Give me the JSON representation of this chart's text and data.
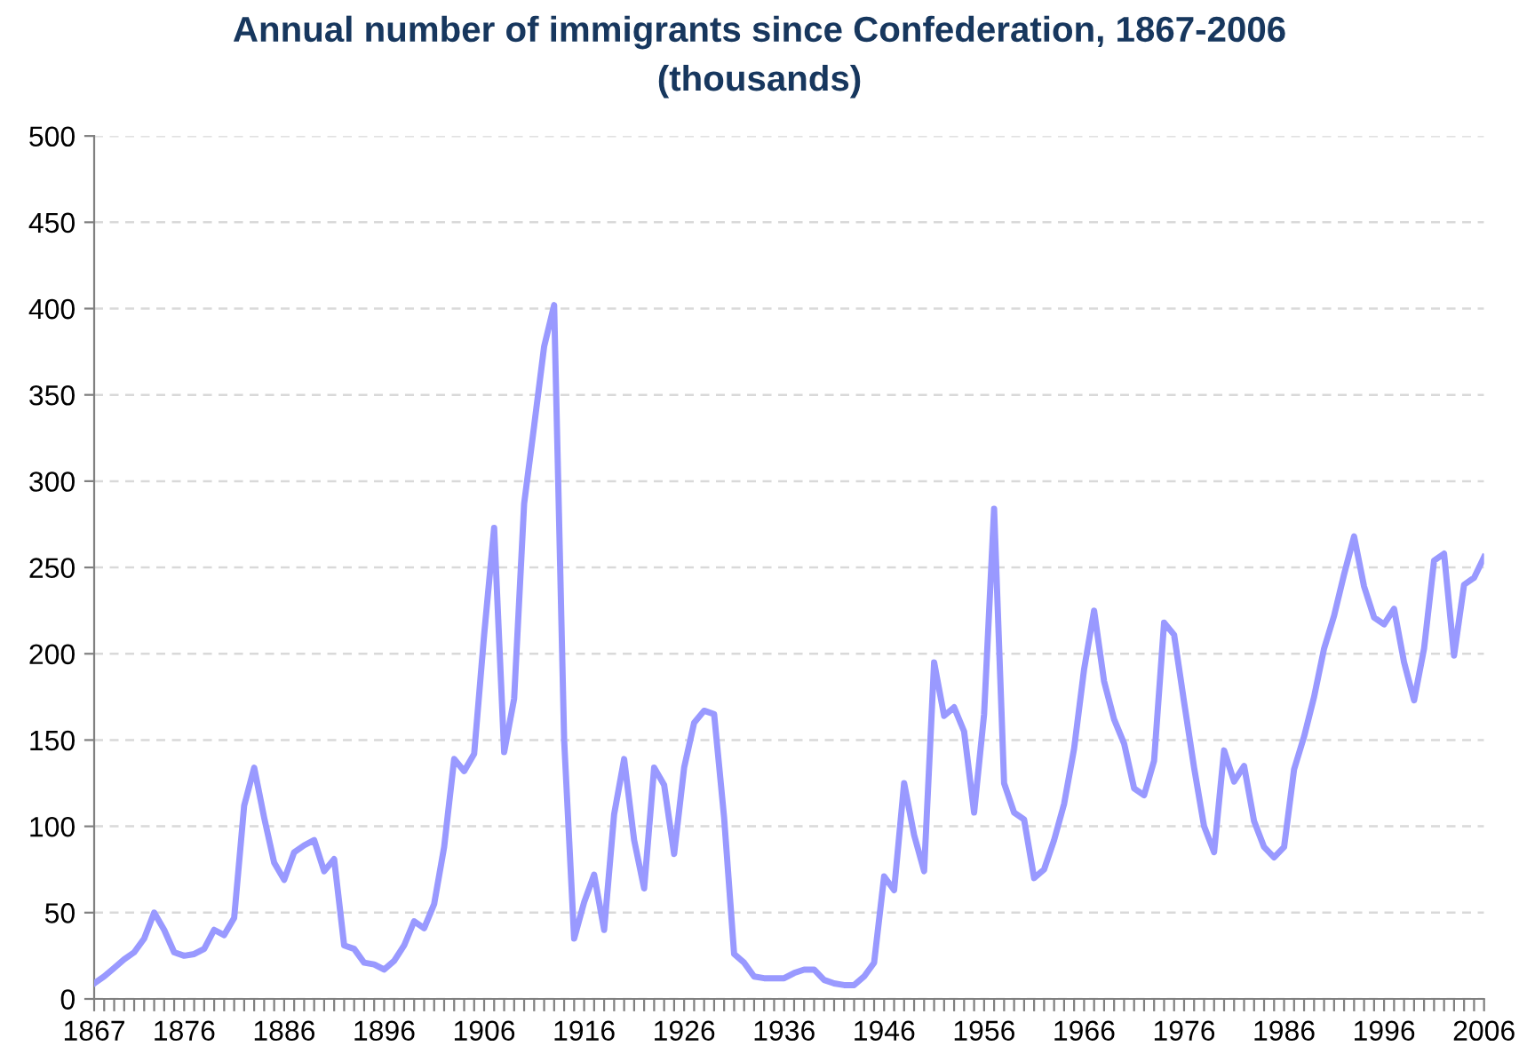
{
  "chart_data": {
    "type": "line",
    "title": "Annual number of immigrants since Confederation, 1867-2006\n(thousands)",
    "x": [
      1867,
      1868,
      1869,
      1870,
      1871,
      1872,
      1873,
      1874,
      1875,
      1876,
      1877,
      1878,
      1879,
      1880,
      1881,
      1882,
      1883,
      1884,
      1885,
      1886,
      1887,
      1888,
      1889,
      1890,
      1891,
      1892,
      1893,
      1894,
      1895,
      1896,
      1897,
      1898,
      1899,
      1900,
      1901,
      1902,
      1903,
      1904,
      1905,
      1906,
      1907,
      1908,
      1909,
      1910,
      1911,
      1912,
      1913,
      1914,
      1915,
      1916,
      1917,
      1918,
      1919,
      1920,
      1921,
      1922,
      1923,
      1924,
      1925,
      1926,
      1927,
      1928,
      1929,
      1930,
      1931,
      1932,
      1933,
      1934,
      1935,
      1936,
      1937,
      1938,
      1939,
      1940,
      1941,
      1942,
      1943,
      1944,
      1945,
      1946,
      1947,
      1948,
      1949,
      1950,
      1951,
      1952,
      1953,
      1954,
      1955,
      1956,
      1957,
      1958,
      1959,
      1960,
      1961,
      1962,
      1963,
      1964,
      1965,
      1966,
      1967,
      1968,
      1969,
      1970,
      1971,
      1972,
      1973,
      1974,
      1975,
      1976,
      1977,
      1978,
      1979,
      1980,
      1981,
      1982,
      1983,
      1984,
      1985,
      1986,
      1987,
      1988,
      1989,
      1990,
      1991,
      1992,
      1993,
      1994,
      1995,
      1996,
      1997,
      1998,
      1999,
      2000,
      2001,
      2002,
      2003,
      2004,
      2005,
      2006
    ],
    "series": [
      {
        "color": "#9999ff",
        "values": [
          9,
          13,
          18,
          23,
          27,
          35,
          50,
          40,
          27,
          25,
          26,
          29,
          40,
          37,
          47,
          112,
          134,
          105,
          79,
          69,
          85,
          89,
          92,
          74,
          81,
          31,
          29,
          21,
          20,
          17,
          22,
          31,
          45,
          41,
          55,
          88,
          139,
          132,
          142,
          211,
          273,
          143,
          174,
          287,
          332,
          378,
          402,
          150,
          35,
          56,
          72,
          40,
          107,
          139,
          92,
          64,
          134,
          124,
          84,
          134,
          160,
          167,
          165,
          105,
          26,
          21,
          13,
          12,
          12,
          12,
          15,
          17,
          17,
          11,
          9,
          8,
          8,
          13,
          21,
          71,
          63,
          125,
          95,
          74,
          195,
          164,
          169,
          155,
          108,
          165,
          284,
          125,
          108,
          104,
          70,
          75,
          92,
          113,
          145,
          191,
          225,
          184,
          162,
          148,
          122,
          118,
          138,
          218,
          211,
          172,
          134,
          100,
          85,
          144,
          126,
          135,
          103,
          88,
          82,
          88,
          133,
          152,
          175,
          203,
          222,
          246,
          268,
          239,
          221,
          217,
          226,
          195,
          173,
          203,
          254,
          258,
          199,
          240,
          244,
          256
        ]
      }
    ],
    "xlim": [
      1867,
      2006
    ],
    "xticks": [
      1867,
      {
        "value": 1868,
        "label": null
      },
      {
        "value": 1869,
        "label": null
      },
      {
        "value": 1870,
        "label": null
      },
      {
        "value": 1871,
        "label": null
      },
      {
        "value": 1872,
        "label": null
      },
      {
        "value": 1873,
        "label": null
      },
      {
        "value": 1874,
        "label": null
      },
      {
        "value": 1875,
        "label": null
      },
      1876,
      {
        "value": 1877,
        "label": null
      },
      {
        "value": 1878,
        "label": null
      },
      {
        "value": 1879,
        "label": null
      },
      {
        "value": 1880,
        "label": null
      },
      {
        "value": 1881,
        "label": null
      },
      {
        "value": 1882,
        "label": null
      },
      {
        "value": 1883,
        "label": null
      },
      {
        "value": 1884,
        "label": null
      },
      {
        "value": 1885,
        "label": null
      },
      1886,
      {
        "value": 1887,
        "label": null
      },
      {
        "value": 1888,
        "label": null
      },
      {
        "value": 1889,
        "label": null
      },
      {
        "value": 1890,
        "label": null
      },
      {
        "value": 1891,
        "label": null
      },
      {
        "value": 1892,
        "label": null
      },
      {
        "value": 1893,
        "label": null
      },
      {
        "value": 1894,
        "label": null
      },
      {
        "value": 1895,
        "label": null
      },
      1896,
      {
        "value": 1897,
        "label": null
      },
      {
        "value": 1898,
        "label": null
      },
      {
        "value": 1899,
        "label": null
      },
      {
        "value": 1900,
        "label": null
      },
      {
        "value": 1901,
        "label": null
      },
      {
        "value": 1902,
        "label": null
      },
      {
        "value": 1903,
        "label": null
      },
      {
        "value": 1904,
        "label": null
      },
      {
        "value": 1905,
        "label": null
      },
      1906,
      {
        "value": 1907,
        "label": null
      },
      {
        "value": 1908,
        "label": null
      },
      {
        "value": 1909,
        "label": null
      },
      {
        "value": 1910,
        "label": null
      },
      {
        "value": 1911,
        "label": null
      },
      {
        "value": 1912,
        "label": null
      },
      {
        "value": 1913,
        "label": null
      },
      {
        "value": 1914,
        "label": null
      },
      {
        "value": 1915,
        "label": null
      },
      1916,
      {
        "value": 1917,
        "label": null
      },
      {
        "value": 1918,
        "label": null
      },
      {
        "value": 1919,
        "label": null
      },
      {
        "value": 1920,
        "label": null
      },
      {
        "value": 1921,
        "label": null
      },
      {
        "value": 1922,
        "label": null
      },
      {
        "value": 1923,
        "label": null
      },
      {
        "value": 1924,
        "label": null
      },
      {
        "value": 1925,
        "label": null
      },
      1926,
      {
        "value": 1927,
        "label": null
      },
      {
        "value": 1928,
        "label": null
      },
      {
        "value": 1929,
        "label": null
      },
      {
        "value": 1930,
        "label": null
      },
      {
        "value": 1931,
        "label": null
      },
      {
        "value": 1932,
        "label": null
      },
      {
        "value": 1933,
        "label": null
      },
      {
        "value": 1934,
        "label": null
      },
      {
        "value": 1935,
        "label": null
      },
      1936,
      {
        "value": 1937,
        "label": null
      },
      {
        "value": 1938,
        "label": null
      },
      {
        "value": 1939,
        "label": null
      },
      {
        "value": 1940,
        "label": null
      },
      {
        "value": 1941,
        "label": null
      },
      {
        "value": 1942,
        "label": null
      },
      {
        "value": 1943,
        "label": null
      },
      {
        "value": 1944,
        "label": null
      },
      {
        "value": 1945,
        "label": null
      },
      1946,
      {
        "value": 1947,
        "label": null
      },
      {
        "value": 1948,
        "label": null
      },
      {
        "value": 1949,
        "label": null
      },
      {
        "value": 1950,
        "label": null
      },
      {
        "value": 1951,
        "label": null
      },
      {
        "value": 1952,
        "label": null
      },
      {
        "value": 1953,
        "label": null
      },
      {
        "value": 1954,
        "label": null
      },
      {
        "value": 1955,
        "label": null
      },
      1956,
      {
        "value": 1957,
        "label": null
      },
      {
        "value": 1958,
        "label": null
      },
      {
        "value": 1959,
        "label": null
      },
      {
        "value": 1960,
        "label": null
      },
      {
        "value": 1961,
        "label": null
      },
      {
        "value": 1962,
        "label": null
      },
      {
        "value": 1963,
        "label": null
      },
      {
        "value": 1964,
        "label": null
      },
      {
        "value": 1965,
        "label": null
      },
      1966,
      {
        "value": 1967,
        "label": null
      },
      {
        "value": 1968,
        "label": null
      },
      {
        "value": 1969,
        "label": null
      },
      {
        "value": 1970,
        "label": null
      },
      {
        "value": 1971,
        "label": null
      },
      {
        "value": 1972,
        "label": null
      },
      {
        "value": 1973,
        "label": null
      },
      {
        "value": 1974,
        "label": null
      },
      {
        "value": 1975,
        "label": null
      },
      1976,
      {
        "value": 1977,
        "label": null
      },
      {
        "value": 1978,
        "label": null
      },
      {
        "value": 1979,
        "label": null
      },
      {
        "value": 1980,
        "label": null
      },
      {
        "value": 1981,
        "label": null
      },
      {
        "value": 1982,
        "label": null
      },
      {
        "value": 1983,
        "label": null
      },
      {
        "value": 1984,
        "label": null
      },
      {
        "value": 1985,
        "label": null
      },
      1986,
      {
        "value": 1987,
        "label": null
      },
      {
        "value": 1988,
        "label": null
      },
      {
        "value": 1989,
        "label": null
      },
      {
        "value": 1990,
        "label": null
      },
      {
        "value": 1991,
        "label": null
      },
      {
        "value": 1992,
        "label": null
      },
      {
        "value": 1993,
        "label": null
      },
      {
        "value": 1994,
        "label": null
      },
      {
        "value": 1995,
        "label": null
      },
      1996,
      {
        "value": 1997,
        "label": null
      },
      {
        "value": 1998,
        "label": null
      },
      {
        "value": 1999,
        "label": null
      },
      {
        "value": 2000,
        "label": null
      },
      {
        "value": 2001,
        "label": null
      },
      {
        "value": 2002,
        "label": null
      },
      {
        "value": 2003,
        "label": null
      },
      {
        "value": 2004,
        "label": null
      },
      {
        "value": 2005,
        "label": null
      },
      2006
    ],
    "ylim": [
      0,
      500
    ],
    "yticks": [
      0,
      50,
      100,
      150,
      200,
      250,
      300,
      350,
      400,
      450,
      500
    ],
    "grid": "y",
    "marker": "none",
    "line_style": "solid"
  }
}
